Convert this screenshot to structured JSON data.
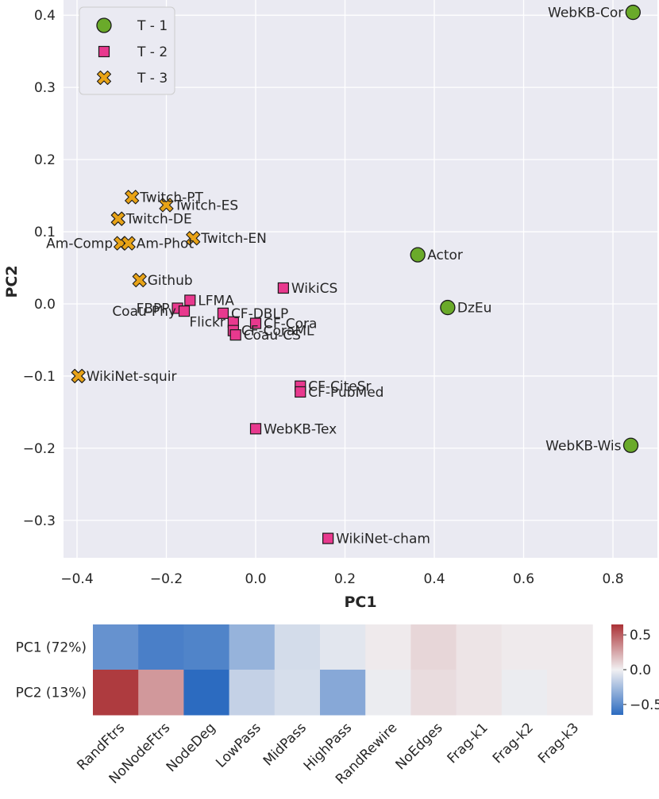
{
  "chart_data": [
    {
      "type": "scatter",
      "xlabel": "PC1",
      "ylabel": "PC2",
      "xlim": [
        -0.42,
        0.87
      ],
      "ylim": [
        -0.35,
        0.42
      ],
      "xticks": [
        -0.4,
        -0.2,
        0.0,
        0.2,
        0.4,
        0.6,
        0.8
      ],
      "xtick_labels": [
        "−0.4",
        "−0.2",
        "0.0",
        "0.2",
        "0.4",
        "0.6",
        "0.8"
      ],
      "yticks": [
        -0.3,
        -0.2,
        -0.1,
        0.0,
        0.1,
        0.2,
        0.3,
        0.4
      ],
      "ytick_labels": [
        "−0.3",
        "−0.2",
        "−0.1",
        "0.0",
        "0.1",
        "0.2",
        "0.3",
        "0.4"
      ],
      "grid": true,
      "legend_position": "top-left",
      "series": [
        {
          "name": "T - 1",
          "marker": "circle",
          "color": "#6aaa2a",
          "points": [
            {
              "label": "WebKB-Cor",
              "x": 0.845,
              "y": 0.404,
              "anchor": "end"
            },
            {
              "label": "Actor",
              "x": 0.363,
              "y": 0.068,
              "anchor": "start"
            },
            {
              "label": "DzEu",
              "x": 0.43,
              "y": -0.005,
              "anchor": "start"
            },
            {
              "label": "WebKB-Wis",
              "x": 0.84,
              "y": -0.196,
              "anchor": "end"
            }
          ]
        },
        {
          "name": "T - 2",
          "marker": "square",
          "color": "#e8398e",
          "points": [
            {
              "label": "WikiCS",
              "x": 0.062,
              "y": 0.022,
              "anchor": "start"
            },
            {
              "label": "LFMA",
              "x": -0.147,
              "y": 0.005,
              "anchor": "start"
            },
            {
              "label": "FBPP",
              "x": -0.175,
              "y": -0.006,
              "anchor": "end"
            },
            {
              "label": "Coau-Phy",
              "x": -0.16,
              "y": -0.01,
              "anchor": "end"
            },
            {
              "label": "CF-DBLP",
              "x": -0.073,
              "y": -0.013,
              "anchor": "start"
            },
            {
              "label": "Flickr",
              "x": -0.05,
              "y": -0.025,
              "anchor": "end"
            },
            {
              "label": "CF-Cora",
              "x": 0.0,
              "y": -0.027,
              "anchor": "start"
            },
            {
              "label": "CF-CoraML",
              "x": -0.05,
              "y": -0.037,
              "anchor": "start"
            },
            {
              "label": "Coau-CS",
              "x": -0.045,
              "y": -0.043,
              "anchor": "start"
            },
            {
              "label": "CF-CiteSr",
              "x": 0.1,
              "y": -0.114,
              "anchor": "start"
            },
            {
              "label": "CF-PubMed",
              "x": 0.1,
              "y": -0.122,
              "anchor": "start"
            },
            {
              "label": "WebKB-Tex",
              "x": 0.0,
              "y": -0.173,
              "anchor": "start"
            },
            {
              "label": "WikiNet-cham",
              "x": 0.162,
              "y": -0.325,
              "anchor": "start"
            }
          ]
        },
        {
          "name": "T - 3",
          "marker": "x",
          "color": "#e8a317",
          "points": [
            {
              "label": "Twitch-PT",
              "x": -0.277,
              "y": 0.148,
              "anchor": "start"
            },
            {
              "label": "Twitch-ES",
              "x": -0.2,
              "y": 0.137,
              "anchor": "start"
            },
            {
              "label": "Twitch-DE",
              "x": -0.308,
              "y": 0.118,
              "anchor": "start"
            },
            {
              "label": "Twitch-EN",
              "x": -0.14,
              "y": 0.091,
              "anchor": "start"
            },
            {
              "label": "Am-Comp",
              "x": -0.302,
              "y": 0.084,
              "anchor": "end"
            },
            {
              "label": "Am-Phot",
              "x": -0.285,
              "y": 0.084,
              "anchor": "start"
            },
            {
              "label": "Github",
              "x": -0.26,
              "y": 0.033,
              "anchor": "start"
            },
            {
              "label": "WikiNet-squir",
              "x": -0.397,
              "y": -0.1,
              "anchor": "start"
            }
          ]
        }
      ]
    },
    {
      "type": "heatmap",
      "rows": [
        "PC1 (72%)",
        "PC2 (13%)"
      ],
      "columns": [
        "RandFtrs",
        "NoNodeFtrs",
        "NodeDeg",
        "LowPass",
        "MidPass",
        "HighPass",
        "RandRewire",
        "NoEdges",
        "Frag-k1",
        "Frag-k2",
        "Frag-k3"
      ],
      "values": [
        [
          -0.46,
          -0.55,
          -0.53,
          -0.3,
          -0.1,
          -0.05,
          0.02,
          0.09,
          0.04,
          0.02,
          0.02
        ],
        [
          0.62,
          0.3,
          -0.65,
          -0.15,
          -0.09,
          -0.35,
          -0.02,
          0.07,
          0.04,
          -0.02,
          0.02
        ]
      ],
      "vmin": -0.65,
      "vmax": 0.65,
      "colormap": "vlag (blue-white-red)",
      "colorbar_ticks": [
        0.5,
        0.0,
        -0.5
      ],
      "colorbar_labels": [
        "0.5",
        "0.0",
        "−0.5"
      ]
    }
  ]
}
